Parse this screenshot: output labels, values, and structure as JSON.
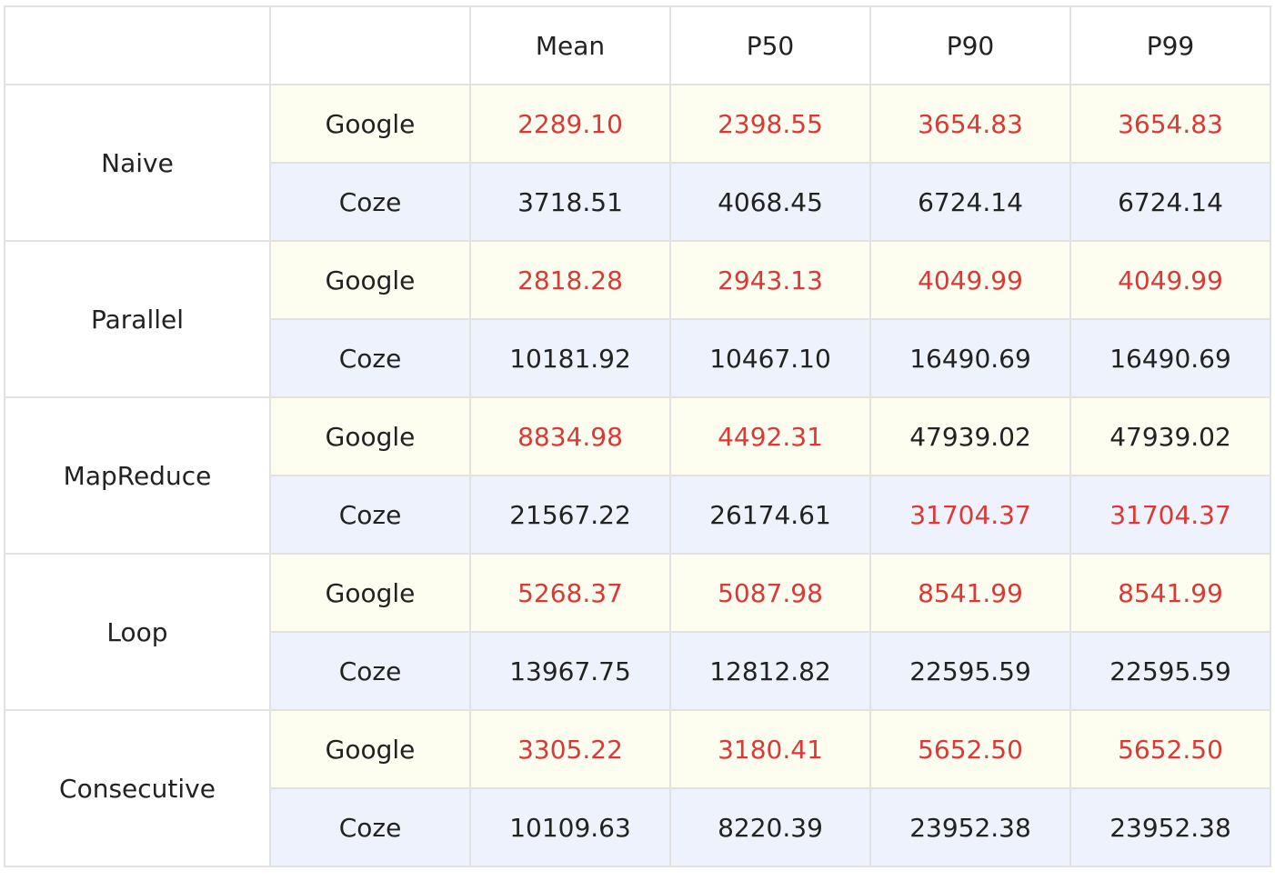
{
  "colors": {
    "google_row_bg": "#fdfdf0",
    "coze_row_bg": "#eef2fc",
    "highlight_text": "#d93a36",
    "normal_text": "#222222",
    "border": "#e2e2e2"
  },
  "header": [
    "",
    "",
    "Mean",
    "P50",
    "P90",
    "P99"
  ],
  "groups": [
    {
      "name": "Naive",
      "rows": [
        {
          "provider": "Google",
          "values": [
            "2289.10",
            "2398.55",
            "3654.83",
            "3654.83"
          ],
          "highlight": [
            true,
            true,
            true,
            true
          ]
        },
        {
          "provider": "Coze",
          "values": [
            "3718.51",
            "4068.45",
            "6724.14",
            "6724.14"
          ],
          "highlight": [
            false,
            false,
            false,
            false
          ]
        }
      ]
    },
    {
      "name": "Parallel",
      "rows": [
        {
          "provider": "Google",
          "values": [
            "2818.28",
            "2943.13",
            "4049.99",
            "4049.99"
          ],
          "highlight": [
            true,
            true,
            true,
            true
          ]
        },
        {
          "provider": "Coze",
          "values": [
            "10181.92",
            "10467.10",
            "16490.69",
            "16490.69"
          ],
          "highlight": [
            false,
            false,
            false,
            false
          ]
        }
      ]
    },
    {
      "name": "MapReduce",
      "rows": [
        {
          "provider": "Google",
          "values": [
            "8834.98",
            "4492.31",
            "47939.02",
            "47939.02"
          ],
          "highlight": [
            true,
            true,
            false,
            false
          ]
        },
        {
          "provider": "Coze",
          "values": [
            "21567.22",
            "26174.61",
            "31704.37",
            "31704.37"
          ],
          "highlight": [
            false,
            false,
            true,
            true
          ]
        }
      ]
    },
    {
      "name": "Loop",
      "rows": [
        {
          "provider": "Google",
          "values": [
            "5268.37",
            "5087.98",
            "8541.99",
            "8541.99"
          ],
          "highlight": [
            true,
            true,
            true,
            true
          ]
        },
        {
          "provider": "Coze",
          "values": [
            "13967.75",
            "12812.82",
            "22595.59",
            "22595.59"
          ],
          "highlight": [
            false,
            false,
            false,
            false
          ]
        }
      ]
    },
    {
      "name": "Consecutive",
      "rows": [
        {
          "provider": "Google",
          "values": [
            "3305.22",
            "3180.41",
            "5652.50",
            "5652.50"
          ],
          "highlight": [
            true,
            true,
            true,
            true
          ]
        },
        {
          "provider": "Coze",
          "values": [
            "10109.63",
            "8220.39",
            "23952.38",
            "23952.38"
          ],
          "highlight": [
            false,
            false,
            false,
            false
          ]
        }
      ]
    }
  ]
}
